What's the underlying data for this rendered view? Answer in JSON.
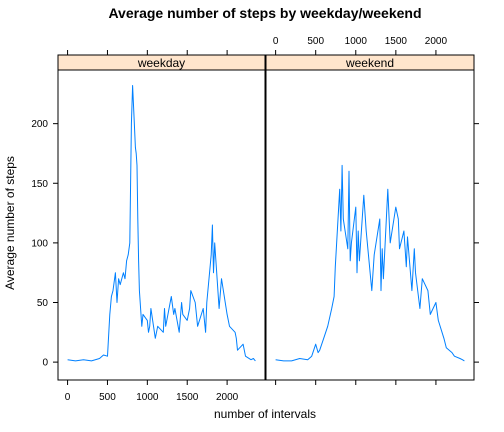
{
  "chart_data": {
    "type": "line",
    "title": "Average number of steps by weekday/weekend",
    "xlabel": "number of intervals",
    "ylabel": "Average number of steps",
    "xlim": [
      -120,
      2475
    ],
    "ylim": [
      -15,
      245
    ],
    "x_ticks": [
      0,
      500,
      1000,
      1500,
      2000
    ],
    "y_ticks": [
      0,
      50,
      100,
      150,
      200
    ],
    "strip_color": "#ffe5cc",
    "line_color": "#0080ff",
    "grid": false,
    "panels": [
      {
        "name": "weekday",
        "x": [
          0,
          100,
          200,
          300,
          400,
          450,
          500,
          530,
          550,
          570,
          600,
          620,
          640,
          660,
          700,
          720,
          740,
          760,
          780,
          800,
          815,
          830,
          840,
          850,
          860,
          870,
          880,
          890,
          900,
          915,
          930,
          945,
          1000,
          1015,
          1030,
          1045,
          1100,
          1130,
          1200,
          1215,
          1230,
          1300,
          1330,
          1345,
          1400,
          1430,
          1445,
          1500,
          1530,
          1545,
          1600,
          1630,
          1700,
          1730,
          1745,
          1800,
          1815,
          1830,
          1845,
          1900,
          1930,
          2000,
          2030,
          2100,
          2115,
          2130,
          2200,
          2230,
          2300,
          2330,
          2355
        ],
        "y": [
          2,
          1,
          2,
          1,
          3,
          6,
          5,
          40,
          55,
          60,
          75,
          50,
          70,
          65,
          75,
          70,
          85,
          90,
          100,
          200,
          232,
          210,
          195,
          180,
          175,
          165,
          120,
          85,
          60,
          45,
          30,
          40,
          35,
          25,
          30,
          45,
          20,
          30,
          25,
          45,
          30,
          55,
          40,
          45,
          25,
          50,
          40,
          35,
          45,
          60,
          50,
          30,
          45,
          25,
          50,
          90,
          115,
          75,
          100,
          45,
          70,
          40,
          30,
          25,
          20,
          10,
          15,
          5,
          2,
          3,
          1
        ]
      },
      {
        "name": "weekend",
        "x": [
          0,
          100,
          200,
          300,
          400,
          450,
          500,
          530,
          550,
          600,
          650,
          700,
          730,
          745,
          800,
          815,
          830,
          845,
          900,
          915,
          930,
          945,
          1000,
          1015,
          1030,
          1045,
          1100,
          1130,
          1200,
          1230,
          1300,
          1315,
          1330,
          1345,
          1400,
          1430,
          1500,
          1530,
          1545,
          1600,
          1630,
          1645,
          1700,
          1730,
          1745,
          1800,
          1830,
          1900,
          1930,
          2000,
          2030,
          2100,
          2130,
          2200,
          2230,
          2300,
          2330,
          2355
        ],
        "y": [
          2,
          1,
          1,
          3,
          2,
          5,
          15,
          8,
          10,
          20,
          30,
          45,
          55,
          80,
          145,
          110,
          165,
          120,
          95,
          160,
          85,
          100,
          130,
          75,
          110,
          85,
          140,
          110,
          60,
          90,
          120,
          60,
          95,
          70,
          145,
          100,
          130,
          120,
          95,
          110,
          80,
          105,
          60,
          95,
          75,
          45,
          70,
          60,
          40,
          50,
          35,
          20,
          12,
          8,
          5,
          3,
          2,
          1
        ]
      }
    ]
  }
}
